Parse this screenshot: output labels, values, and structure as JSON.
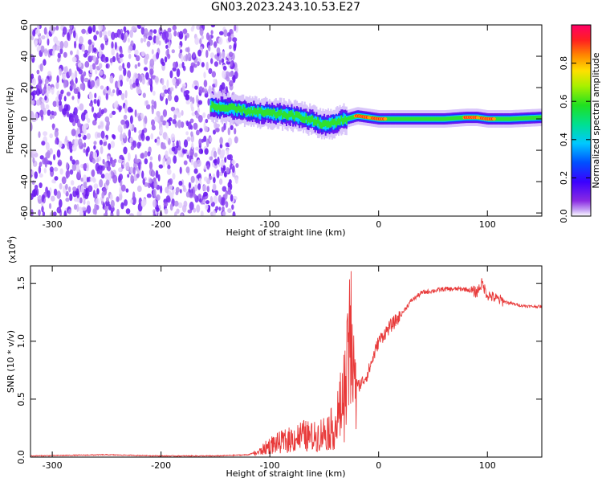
{
  "title": "GN03.2023.243.10.53.E27",
  "chart_data": [
    {
      "type": "heatmap",
      "xlabel": "Height of straight line (km)",
      "ylabel": "Frequency (Hz)",
      "xlim": [
        -320,
        150
      ],
      "ylim": [
        -62,
        60
      ],
      "xticks": [
        -300,
        -200,
        -100,
        0,
        100
      ],
      "yticks": [
        -60,
        -40,
        -20,
        0,
        20,
        40,
        60
      ],
      "colorbar": {
        "label": "Normalized spectral amplitude",
        "range": [
          0,
          1
        ],
        "ticks": [
          "0.0",
          "0.2",
          "0.4",
          "0.6",
          "0.8"
        ],
        "tick_values": [
          0.0,
          0.2,
          0.4,
          0.6,
          0.8
        ],
        "colormap": "rainbow-purple-to-magenta"
      },
      "noise_region_x": [
        -320,
        -130
      ],
      "signal_ridge": {
        "x": [
          -155,
          -130,
          -110,
          -90,
          -70,
          -50,
          -40,
          -30,
          -20,
          -10,
          0,
          20,
          40,
          60,
          80,
          90,
          100,
          120,
          150
        ],
        "y": [
          8,
          6,
          4,
          3,
          1,
          -4,
          -2,
          0,
          2,
          1,
          0,
          0,
          0,
          0,
          1,
          1,
          0,
          0,
          1
        ],
        "peak_amplitude_x": [
          -15,
          0,
          85,
          100
        ]
      }
    },
    {
      "type": "line",
      "xlabel": "Height of straight line (km)",
      "ylabel": "SNR (10 * v/v)",
      "y_multiplier": "(x10",
      "y_multiplier_exp": "4",
      "y_multiplier_close": ")",
      "xlim": [
        -320,
        150
      ],
      "ylim": [
        0,
        1.65
      ],
      "xticks": [
        -300,
        -200,
        -100,
        0,
        100
      ],
      "yticks": [
        "0.0",
        "0.5",
        "1.0",
        "1.5"
      ],
      "ytick_values": [
        0.0,
        0.5,
        1.0,
        1.5
      ],
      "series": [
        {
          "color": "#e83a3a",
          "x": [
            -320,
            -250,
            -200,
            -150,
            -120,
            -110,
            -100,
            -90,
            -80,
            -70,
            -60,
            -50,
            -40,
            -35,
            -30,
            -25,
            -22,
            -20,
            -15,
            -10,
            0,
            10,
            20,
            30,
            40,
            60,
            80,
            90,
            95,
            100,
            105,
            110,
            120,
            130,
            140,
            150
          ],
          "y": [
            0.01,
            0.02,
            0.01,
            0.01,
            0.02,
            0.05,
            0.12,
            0.15,
            0.18,
            0.22,
            0.2,
            0.25,
            0.3,
            0.5,
            0.7,
            1.2,
            0.6,
            0.6,
            0.65,
            0.72,
            1.0,
            1.12,
            1.22,
            1.35,
            1.42,
            1.45,
            1.45,
            1.42,
            1.5,
            1.4,
            1.38,
            1.36,
            1.33,
            1.31,
            1.3,
            1.3
          ]
        }
      ]
    }
  ]
}
